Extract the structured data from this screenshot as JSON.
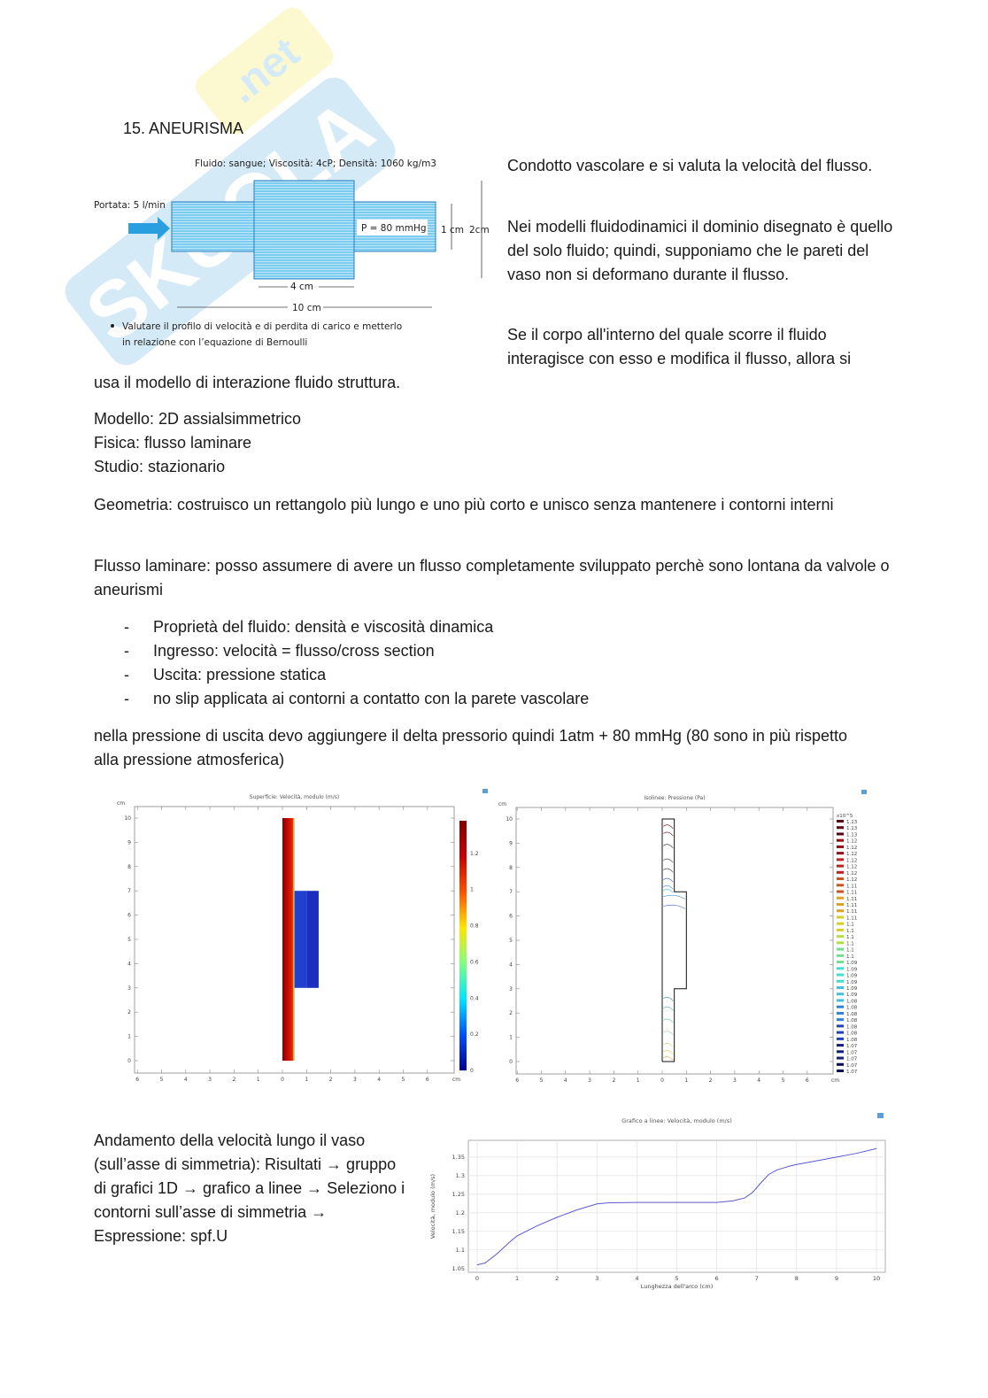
{
  "section_title": "15. ANEURISMA",
  "watermark": "SKUOLA.net",
  "figure": {
    "fluid_label": "Fluido: sangue; Viscosità: 4cP; Densità: 1060 kg/m3",
    "flow_label": "Portata: 5 l/min",
    "pressure_label": "P = 80 mmHg",
    "dim_1cm": "1 cm",
    "dim_2cm": "2cm",
    "dim_4cm": "4 cm",
    "dim_10cm": "10 cm",
    "bullet_line1": "Valutare il profilo di velocità e di perdita di carico e metterlo",
    "bullet_line2": "in relazione con l’equazione di Bernoulli",
    "colors": {
      "fluid": "#6fc6ec",
      "arrow": "#2a9fe0"
    }
  },
  "right_text": {
    "p1": "Condotto vascolare e si valuta la velocità del flusso.",
    "p2": "Nei modelli fluidodinamici il dominio disegnato è quello del solo fluido; quindi, supponiamo che le pareti del vaso non si deformano durante il flusso.",
    "p3": "Se il corpo all'interno del quale scorre il fluido interagisce con esso e modifica il flusso, allora si"
  },
  "body": {
    "p3_cont": "usa il modello di interazione fluido struttura.",
    "modello": "Modello: 2D assialsimmetrico",
    "fisica": "Fisica: flusso laminare",
    "studio": "Studio: stazionario",
    "geometria": "Geometria: costruisco un rettangolo più lungo e uno più corto e unisco senza mantenere i contorni interni",
    "flusso": "Flusso laminare: posso assumere di avere un flusso completamente sviluppato perchè sono lontana da valvole o aneurismi",
    "list": [
      "Proprietà del fluido: densità e viscosità dinamica",
      "Ingresso: velocità = flusso/cross section",
      "Uscita: pressione statica",
      "no slip applicata ai contorni a contatto con la parete vascolare"
    ],
    "dash": "-",
    "pressione": "nella pressione di uscita devo aggiungere il delta pressorio quindi 1atm + 80 mmHg (80 sono in più rispetto alla pressione atmosferica)",
    "andamento": "Andamento della velocità lungo il vaso (sull’asse di simmetria): Risultati → gruppo di grafici 1D → grafico a linee → Seleziono i contorni sull’asse di simmetria → Espressione: spf.U"
  },
  "chart_data": [
    {
      "type": "heatmap",
      "title": "Superficie: Velocità, modulo (m/s)",
      "x_unit": "cm",
      "y_unit": "cm",
      "x_ticks": [
        "6",
        "5",
        "4",
        "3",
        "2",
        "1",
        "0",
        "1",
        "2",
        "3",
        "4",
        "5",
        "6"
      ],
      "y_ticks": [
        "0",
        "1",
        "2",
        "3",
        "4",
        "5",
        "6",
        "7",
        "8",
        "9",
        "10"
      ],
      "colorbar_ticks": [
        "0",
        "0.2",
        "0.4",
        "0.6",
        "0.8",
        "1",
        "1.2"
      ],
      "colorbar_range": [
        0,
        1.38
      ],
      "colormap": [
        "#00008f",
        "#0050ff",
        "#00e5ff",
        "#7fff7f",
        "#ffe500",
        "#ff5000",
        "#c80000",
        "#800000"
      ]
    },
    {
      "type": "contour",
      "title": "Isolinee: Pressione (Pa)",
      "x_unit": "cm",
      "y_unit": "cm",
      "x_ticks": [
        "6",
        "5",
        "4",
        "3",
        "2",
        "1",
        "0",
        "1",
        "2",
        "3",
        "4",
        "5",
        "6"
      ],
      "y_ticks": [
        "0",
        "1",
        "2",
        "3",
        "4",
        "5",
        "6",
        "7",
        "8",
        "9",
        "10"
      ],
      "colorbar_multiplier": "x10^5",
      "colorbar_ticks": [
        "1.13",
        "1.13",
        "1.13",
        "1.12",
        "1.12",
        "1.12",
        "1.12",
        "1.12",
        "1.12",
        "1.12",
        "1.11",
        "1.11",
        "1.11",
        "1.11",
        "1.11",
        "1.11",
        "1.1",
        "1.1",
        "1.1",
        "1.1",
        "1.1",
        "1.1",
        "1.09",
        "1.09",
        "1.09",
        "1.09",
        "1.09",
        "1.09",
        "1.08",
        "1.08",
        "1.08",
        "1.08",
        "1.08",
        "1.08",
        "1.08",
        "1.07",
        "1.07",
        "1.07",
        "1.07",
        "1.07"
      ]
    },
    {
      "type": "line",
      "title": "Grafico a linee: Velocità, modulo (m/s)",
      "xlabel": "Lunghezza dell'arco (cm)",
      "ylabel": "Velocità, modulo (m/s)",
      "xlim": [
        0,
        10
      ],
      "ylim": [
        1.04,
        1.395
      ],
      "x_ticks": [
        0,
        1,
        2,
        3,
        4,
        5,
        6,
        7,
        8,
        9,
        10
      ],
      "y_ticks": [
        "1.05",
        "1.1",
        "1.15",
        "1.2",
        "1.25",
        "1.3",
        "1.35"
      ],
      "grid": true,
      "x": [
        0,
        0.2,
        0.5,
        0.8,
        1,
        1.5,
        2,
        2.5,
        3,
        3.3,
        4,
        5,
        6,
        6.4,
        6.7,
        6.9,
        7.1,
        7.3,
        7.5,
        7.8,
        8,
        8.5,
        9,
        9.5,
        10
      ],
      "y": [
        1.06,
        1.065,
        1.09,
        1.12,
        1.138,
        1.165,
        1.188,
        1.208,
        1.224,
        1.227,
        1.228,
        1.228,
        1.228,
        1.232,
        1.24,
        1.255,
        1.28,
        1.303,
        1.315,
        1.325,
        1.33,
        1.34,
        1.35,
        1.36,
        1.373
      ],
      "line_color": "#5a5ad0"
    }
  ]
}
